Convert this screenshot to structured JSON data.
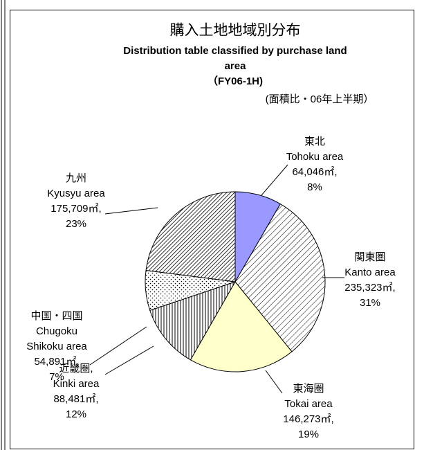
{
  "chart_data": {
    "type": "pie",
    "title": "購入土地地域別分布",
    "subtitle": [
      "Distribution table classified by purchase land",
      "area",
      "（FY06-1H)"
    ],
    "note": "(面積比・06年上半期）",
    "categories": [
      "東北",
      "関東圏",
      "東海圏",
      "近畿圏,",
      "中国・四国",
      "九州"
    ],
    "english_names": [
      [
        "Tohoku area"
      ],
      [
        "Kanto area"
      ],
      [
        "Tokai area"
      ],
      [
        "Kinki area"
      ],
      [
        "Chugoku",
        "Shikoku area"
      ],
      [
        "Kyusyu area"
      ]
    ],
    "values": [
      64046,
      235323,
      146273,
      88481,
      54891,
      175709
    ],
    "value_labels": [
      "64,046㎡,",
      "235,323㎡,",
      "146,273㎡,",
      "88,481㎡,",
      "54,891㎡,",
      "175,709㎡,"
    ],
    "percents": [
      8,
      31,
      19,
      12,
      7,
      23
    ],
    "percent_labels": [
      "8%",
      "31%",
      "19%",
      "12%",
      "7%",
      "23%"
    ],
    "colors": [
      "#9999ff",
      "hatch",
      "#ffffcc",
      "vlines",
      "dots",
      "densehatch"
    ]
  }
}
